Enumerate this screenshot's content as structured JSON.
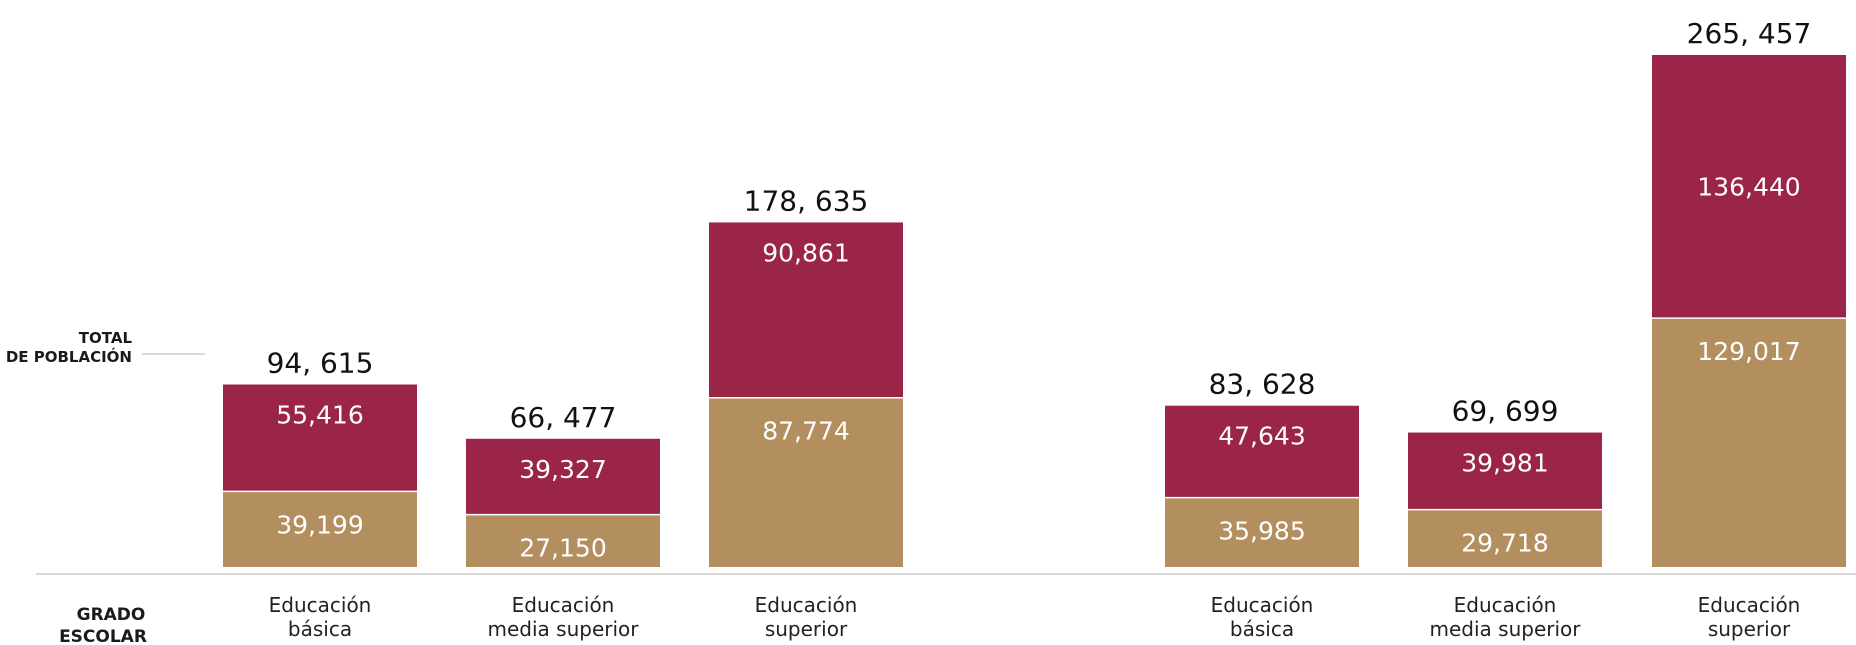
{
  "side_labels": {
    "total_line1": "TOTAL",
    "total_line2": "DE POBLACIÓN",
    "grado_line1": "GRADO",
    "grado_line2": "ESCOLAR"
  },
  "chart_data": {
    "type": "bar",
    "stacked": true,
    "groups": [
      {
        "categories": [
          {
            "label_lines": [
              "Educación",
              "básica"
            ],
            "bottom": 39199,
            "top": 55416,
            "total_label": "94, 615"
          },
          {
            "label_lines": [
              "Educación",
              "media superior"
            ],
            "bottom": 27150,
            "top": 39327,
            "total_label": "66, 477"
          },
          {
            "label_lines": [
              "Educación",
              "superior"
            ],
            "bottom": 87774,
            "top": 90861,
            "total_label": "178, 635"
          }
        ]
      },
      {
        "categories": [
          {
            "label_lines": [
              "Educación",
              "básica"
            ],
            "bottom": 35985,
            "top": 47643,
            "total_label": "83, 628"
          },
          {
            "label_lines": [
              "Educación",
              "media superior"
            ],
            "bottom": 29718,
            "top": 39981,
            "total_label": "69, 699"
          },
          {
            "label_lines": [
              "Educación",
              "superior"
            ],
            "bottom": 129017,
            "top": 136440,
            "total_label": "265, 457"
          }
        ]
      }
    ],
    "segment_labels": [
      [
        "39,199",
        "55,416"
      ],
      [
        "27,150",
        "39,327"
      ],
      [
        "87,774",
        "90,861"
      ],
      [
        "35,985",
        "47,643"
      ],
      [
        "29,718",
        "39,981"
      ],
      [
        "129,017",
        "136,440"
      ]
    ],
    "colors": {
      "bottom": "#b38f60",
      "top": "#9b2449",
      "baseline": "#cccccc"
    },
    "legend": "none",
    "grid": false
  }
}
